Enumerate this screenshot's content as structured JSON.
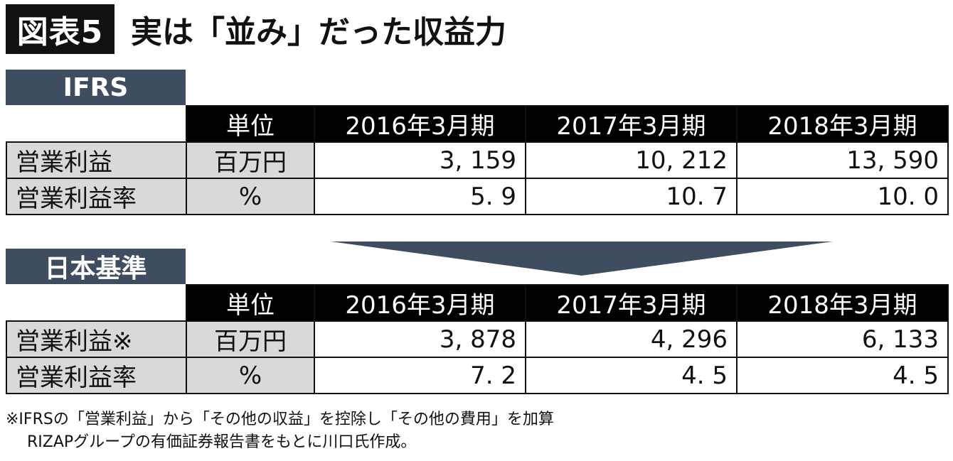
{
  "title": {
    "badge": "図表5",
    "text": "実は「並み」だった収益力"
  },
  "ifrs": {
    "label": "IFRS",
    "headers": [
      "単位",
      "2016年3月期",
      "2017年3月期",
      "2018年3月期"
    ],
    "rows": [
      {
        "label": "営業利益",
        "unit": "百万円",
        "values": [
          "3, 159",
          "10, 212",
          "13, 590"
        ]
      },
      {
        "label": "営業利益率",
        "unit": "%",
        "values": [
          "5. 9",
          "10. 7",
          "10. 0"
        ]
      }
    ]
  },
  "japan": {
    "label": "日本基準",
    "headers": [
      "単位",
      "2016年3月期",
      "2017年3月期",
      "2018年3月期"
    ],
    "rows": [
      {
        "label": "営業利益※",
        "unit": "百万円",
        "values": [
          "3, 878",
          "4, 296",
          "6, 133"
        ]
      },
      {
        "label": "営業利益率",
        "unit": "%",
        "values": [
          "7. 2",
          "4. 5",
          "4. 5"
        ]
      }
    ]
  },
  "notes": {
    "line1": "※IFRSの「営業利益」から「その他の収益」を控除し「その他の費用」を加算",
    "line2": "RIZAPグループの有価証券報告書をもとに川口氏作成。"
  },
  "colors": {
    "section_bg": "#3e4d5f",
    "header_bg": "#000000",
    "label_bg": "#d9d9d9"
  }
}
